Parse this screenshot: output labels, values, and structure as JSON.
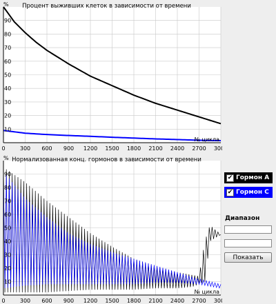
{
  "chart_data": [
    {
      "type": "line",
      "title": "Процент выживших клеток в зависимости от времени",
      "ylabel": "%",
      "xlabel": "№ цикла",
      "xlim": [
        0,
        3000
      ],
      "ylim": [
        0,
        100
      ],
      "grid": true,
      "x_ticks": [
        "0",
        "300",
        "600",
        "900",
        "1200",
        "1500",
        "1800",
        "2100",
        "2400",
        "2700",
        "3000"
      ],
      "y_ticks": [
        "10",
        "20",
        "30",
        "40",
        "50",
        "60",
        "70",
        "80",
        "90"
      ],
      "series": [
        {
          "color": "#000000",
          "x": [
            0,
            150,
            300,
            450,
            600,
            900,
            1200,
            1500,
            1800,
            2100,
            2400,
            2700,
            3000
          ],
          "y": [
            100,
            89,
            81,
            74,
            68,
            58,
            49,
            42,
            35,
            29,
            24,
            19,
            14
          ]
        },
        {
          "color": "#0000ff",
          "x": [
            0,
            300,
            600,
            900,
            1200,
            1500,
            1800,
            2100,
            2400,
            2700,
            3000
          ],
          "y": [
            9,
            7,
            6,
            5.3,
            4.7,
            4,
            3.4,
            2.8,
            2.3,
            1.8,
            1.5
          ]
        }
      ]
    },
    {
      "type": "line",
      "title": "Нормализованная конц. гормонов в зависимости от времени",
      "ylabel": "%",
      "xlabel": "№ цикла",
      "xlim": [
        0,
        3000
      ],
      "ylim": [
        0,
        100
      ],
      "grid": true,
      "x_ticks": [
        "0",
        "300",
        "600",
        "900",
        "1200",
        "1500",
        "1800",
        "2100",
        "2400",
        "2700",
        "3000"
      ],
      "y_ticks": [
        "10",
        "20",
        "30",
        "40",
        "50",
        "60",
        "70",
        "80",
        "90"
      ],
      "series": [
        {
          "name": "Гормон А",
          "color": "#000000",
          "style": "oscillating",
          "x": [
            0,
            300,
            600,
            900,
            1200,
            1500,
            1800,
            2100,
            2400,
            2600,
            2700,
            2780,
            2850,
            3000
          ],
          "upper": [
            95,
            84,
            70,
            58,
            46,
            36,
            27,
            21,
            17,
            15,
            14,
            40,
            52,
            45
          ],
          "lower": [
            2,
            2,
            2,
            3,
            4,
            4,
            4,
            5,
            5,
            6,
            8,
            10,
            40,
            45
          ]
        },
        {
          "name": "Гормон С",
          "color": "#0000ff",
          "style": "oscillating",
          "x": [
            0,
            300,
            600,
            900,
            1200,
            1500,
            1800,
            2100,
            2400,
            2700,
            3000
          ],
          "upper": [
            92,
            72,
            58,
            46,
            38,
            32,
            27,
            22,
            17,
            12,
            8
          ],
          "lower": [
            5,
            7,
            8,
            8,
            8,
            8,
            8,
            9,
            9,
            8,
            5
          ]
        }
      ]
    }
  ],
  "sidebar": {
    "legend": [
      {
        "label": "Гормон А",
        "checked": true,
        "mark": "✔",
        "color": "#000000"
      },
      {
        "label": "Гормон С",
        "checked": true,
        "mark": "✔",
        "color": "#0000ff"
      }
    ],
    "range_label": "Диапазон",
    "range_from": "",
    "range_to": "",
    "show_button": "Показать"
  }
}
